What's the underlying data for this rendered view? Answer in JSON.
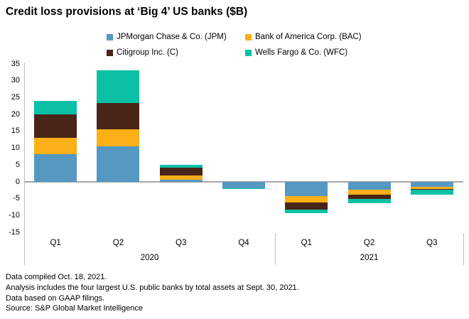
{
  "title": "Credit loss provisions at ‘Big 4’ US banks ($B)",
  "chart_data": {
    "type": "bar",
    "stacked": true,
    "title": "Credit loss provisions at ‘Big 4’ US banks ($B)",
    "categories": [
      "Q1",
      "Q2",
      "Q3",
      "Q4",
      "Q1",
      "Q2",
      "Q3"
    ],
    "year_groups": [
      {
        "label": "2020",
        "first_slot": 0,
        "last_slot": 3
      },
      {
        "label": "2021",
        "first_slot": 4,
        "last_slot": 6
      }
    ],
    "series": [
      {
        "name": "JPMorgan Chase & Co. (JPM)",
        "color": "#5598C2",
        "values": [
          8.3,
          10.5,
          0.6,
          -1.9,
          -4.2,
          -2.3,
          -1.5
        ]
      },
      {
        "name": "Bank of America Corp. (BAC)",
        "color": "#FCAF17",
        "values": [
          4.8,
          5.1,
          1.4,
          0,
          -1.9,
          -1.6,
          -0.6
        ]
      },
      {
        "name": "Citigroup Inc. (C)",
        "color": "#482517",
        "values": [
          7.0,
          7.9,
          2.3,
          0,
          -2.1,
          -1.1,
          -0.2
        ]
      },
      {
        "name": "Wells Fargo & Co. (WFC)",
        "color": "#0BC1A5",
        "values": [
          4.0,
          9.6,
          0.8,
          -0.2,
          -1.0,
          -1.3,
          -1.4
        ]
      }
    ],
    "ylim": [
      -15,
      35
    ],
    "yticks": [
      35,
      30,
      25,
      20,
      15,
      10,
      5,
      0,
      -5,
      -10,
      -15
    ],
    "grid": false,
    "legend_position": "top"
  },
  "colors": {
    "background": "#FFFFFF",
    "axis_line": "#BFBFBF",
    "zero_line": "#A6A6A6",
    "text": "#000000"
  },
  "footnotes": [
    "Data compiled Oct. 18, 2021.",
    "Analysis includes the four largest U.S. public banks by total assets at Sept. 30, 2021.",
    "Data based on GAAP filings.",
    "Source: S&P Global Market Intelligence"
  ]
}
